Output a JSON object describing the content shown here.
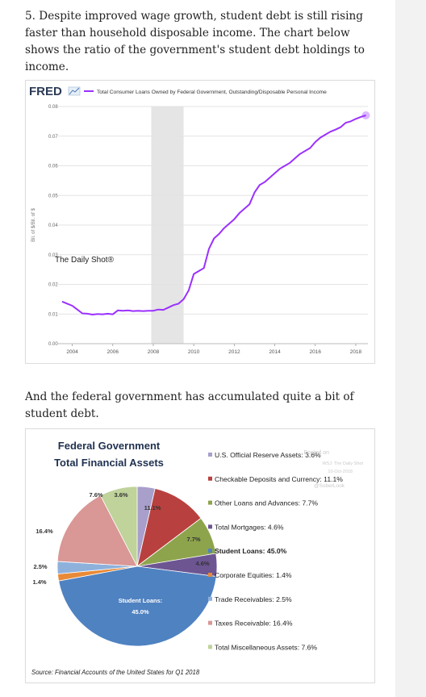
{
  "intro": {
    "paragraph1": "5. Despite improved wage growth, student debt is still rising faster than household disposable income. The chart below shows the ratio of the government's student debt holdings to income.",
    "paragraph2": "And the federal government has accumulated quite a bit of student debt."
  },
  "chart_data": [
    {
      "type": "line",
      "brand": "FRED",
      "title": "",
      "ylabel": "Bil. of $/Bil. of $",
      "xlabel": "",
      "watermark": "The Daily Shot®",
      "ylim": [
        0,
        0.08
      ],
      "yticks": [
        "0.00",
        "0.01",
        "0.02",
        "0.03",
        "0.04",
        "0.05",
        "0.06",
        "0.07",
        "0.08"
      ],
      "xlim": [
        2003.3,
        2018.6
      ],
      "xticks": [
        "2004",
        "2006",
        "2008",
        "2010",
        "2012",
        "2014",
        "2016",
        "2018"
      ],
      "grid": true,
      "recession_band": [
        2007.9,
        2009.5
      ],
      "line_color": "#9b30ff",
      "series": [
        {
          "name": "Total Consumer Loans Owned by Federal Government, Outstanding/Disposable Personal Income",
          "points": [
            [
              2003.5,
              0.0142
            ],
            [
              2003.75,
              0.0135
            ],
            [
              2004.0,
              0.0128
            ],
            [
              2004.25,
              0.0115
            ],
            [
              2004.5,
              0.0102
            ],
            [
              2004.75,
              0.0101
            ],
            [
              2005.0,
              0.0098
            ],
            [
              2005.25,
              0.01
            ],
            [
              2005.5,
              0.0099
            ],
            [
              2005.75,
              0.0101
            ],
            [
              2006.0,
              0.0099
            ],
            [
              2006.25,
              0.0112
            ],
            [
              2006.5,
              0.0111
            ],
            [
              2006.75,
              0.0112
            ],
            [
              2007.0,
              0.011
            ],
            [
              2007.25,
              0.0111
            ],
            [
              2007.5,
              0.011
            ],
            [
              2007.75,
              0.0111
            ],
            [
              2008.0,
              0.0111
            ],
            [
              2008.25,
              0.0115
            ],
            [
              2008.5,
              0.0114
            ],
            [
              2008.75,
              0.0122
            ],
            [
              2009.0,
              0.013
            ],
            [
              2009.25,
              0.0135
            ],
            [
              2009.5,
              0.015
            ],
            [
              2009.75,
              0.018
            ],
            [
              2010.0,
              0.0235
            ],
            [
              2010.25,
              0.0245
            ],
            [
              2010.5,
              0.0255
            ],
            [
              2010.75,
              0.032
            ],
            [
              2011.0,
              0.0355
            ],
            [
              2011.25,
              0.037
            ],
            [
              2011.5,
              0.039
            ],
            [
              2011.75,
              0.0405
            ],
            [
              2012.0,
              0.042
            ],
            [
              2012.25,
              0.044
            ],
            [
              2012.5,
              0.0455
            ],
            [
              2012.75,
              0.047
            ],
            [
              2013.0,
              0.051
            ],
            [
              2013.25,
              0.0535
            ],
            [
              2013.5,
              0.0545
            ],
            [
              2013.75,
              0.056
            ],
            [
              2014.0,
              0.0575
            ],
            [
              2014.25,
              0.059
            ],
            [
              2014.5,
              0.06
            ],
            [
              2014.75,
              0.061
            ],
            [
              2015.0,
              0.0625
            ],
            [
              2015.25,
              0.064
            ],
            [
              2015.5,
              0.065
            ],
            [
              2015.75,
              0.066
            ],
            [
              2016.0,
              0.068
            ],
            [
              2016.25,
              0.0695
            ],
            [
              2016.5,
              0.0705
            ],
            [
              2016.75,
              0.0715
            ],
            [
              2017.0,
              0.0722
            ],
            [
              2017.25,
              0.073
            ],
            [
              2017.5,
              0.0745
            ],
            [
              2017.75,
              0.075
            ],
            [
              2018.0,
              0.0758
            ],
            [
              2018.25,
              0.0765
            ],
            [
              2018.5,
              0.077
            ]
          ]
        }
      ]
    },
    {
      "type": "pie",
      "title_line1": "Federal Government",
      "title_line2": "Total Financial Assets",
      "source": "Source: Financial Accounts of the United States for Q1 2018",
      "watermark": [
        "Posted on",
        "WSJ: The Daily Shot",
        "10-Oct-2018",
        "@SoberLook"
      ],
      "legend_placement": "right",
      "slices": [
        {
          "label": "U.S. Official Reserve Assets: 3.6%",
          "value": 3.6,
          "pct_label": "3.6%",
          "color": "#a99fcb"
        },
        {
          "label": "Checkable Deposits and Currency: 11.1%",
          "value": 11.1,
          "pct_label": "11.1%",
          "color": "#b8413f"
        },
        {
          "label": "Other Loans and Advances: 7.7%",
          "value": 7.7,
          "pct_label": "7.7%",
          "color": "#8da44c"
        },
        {
          "label": "Total Mortgages: 4.6%",
          "value": 4.6,
          "pct_label": "4.6%",
          "color": "#6d5592"
        },
        {
          "label": "Student Loans: 45.0%",
          "value": 45.0,
          "pct_label": "Student Loans:",
          "pct_label2": "45.0%",
          "color": "#4f82c1"
        },
        {
          "label": "Corporate Equities: 1.4%",
          "value": 1.4,
          "pct_label": "1.4%",
          "color": "#e98a36"
        },
        {
          "label": "Trade Receivables: 2.5%",
          "value": 2.5,
          "pct_label": "2.5%",
          "color": "#8eb1dc"
        },
        {
          "label": "Taxes Receivable: 16.4%",
          "value": 16.4,
          "pct_label": "16.4%",
          "color": "#d99795"
        },
        {
          "label": "Total Miscellaneous Assets: 7.6%",
          "value": 7.6,
          "pct_label": "7.6%",
          "color": "#bfd39a"
        }
      ]
    }
  ]
}
